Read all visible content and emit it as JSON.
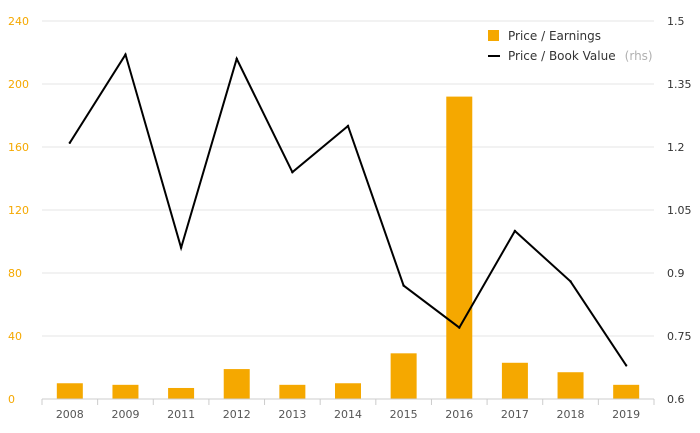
{
  "chart_data": {
    "type": "bar",
    "categories": [
      "2008",
      "2009",
      "2011",
      "2012",
      "2013",
      "2014",
      "2015",
      "2016",
      "2017",
      "2018",
      "2019"
    ],
    "series": [
      {
        "name": "Price / Earnings",
        "type": "bar",
        "axis": "left",
        "values": [
          10,
          9,
          7,
          19,
          9,
          10,
          29,
          192,
          23,
          17,
          9
        ]
      },
      {
        "name": "Price / Book Value",
        "rhs_label": "(rhs)",
        "type": "line",
        "axis": "right",
        "values": [
          1.21,
          1.42,
          0.96,
          1.41,
          1.14,
          1.25,
          0.87,
          0.77,
          1.0,
          0.88,
          0.68
        ]
      }
    ],
    "left_axis": {
      "ylim": [
        0,
        240
      ],
      "ticks": [
        "0",
        "40",
        "80",
        "120",
        "160",
        "200",
        "240"
      ]
    },
    "right_axis": {
      "ylim": [
        0.6,
        1.5
      ],
      "ticks": [
        "0.6",
        "0.75",
        "0.9",
        "1.05",
        "1.2",
        "1.35",
        "1.5"
      ]
    },
    "grid": true,
    "legend_position": "top-right",
    "colors": {
      "bar": "#f5a800",
      "line": "#000000",
      "left_ticks": "#f5a800",
      "grid": "#e6e6e6"
    }
  }
}
